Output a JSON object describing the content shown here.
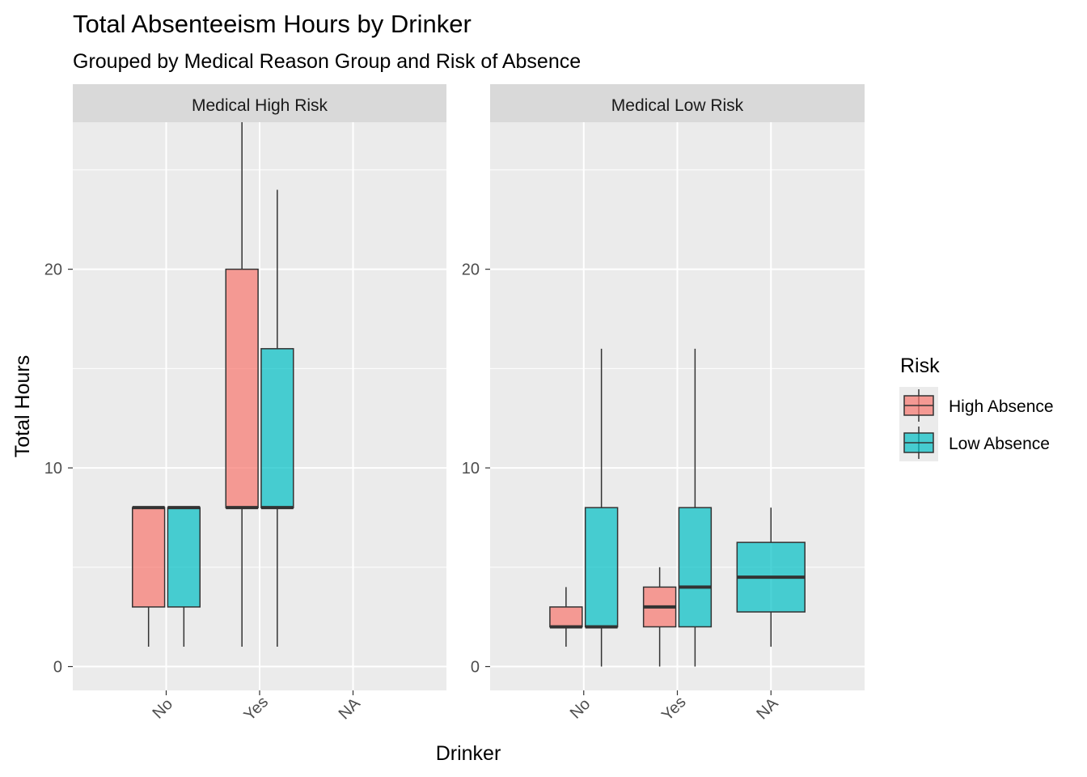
{
  "chart_data": {
    "type": "boxplot",
    "title": "Total Absenteeism Hours by Drinker",
    "subtitle": "Grouped by Medical Reason Group and Risk of Absence",
    "xlabel": "Drinker",
    "ylabel": "Total Hours",
    "categories": [
      "No",
      "Yes",
      "NA"
    ],
    "yticks": [
      0,
      10,
      20
    ],
    "ylim": [
      -1.2,
      27.4
    ],
    "grid": true,
    "legend": {
      "title": "Risk",
      "position": "right",
      "entries": [
        {
          "name": "High Absence",
          "color": "#F8766D"
        },
        {
          "name": "Low Absence",
          "color": "#00BFC4"
        }
      ]
    },
    "facets": [
      {
        "label": "Medical High Risk",
        "boxes": [
          {
            "x": "No",
            "group": "High Absence",
            "whisker_low": 1,
            "q1": 3,
            "median": 8,
            "q3": 8,
            "whisker_high": 8
          },
          {
            "x": "No",
            "group": "Low Absence",
            "whisker_low": 1,
            "q1": 3,
            "median": 8,
            "q3": 8,
            "whisker_high": 8
          },
          {
            "x": "Yes",
            "group": "High Absence",
            "whisker_low": 1,
            "q1": 8,
            "median": 8,
            "q3": 20,
            "whisker_high": 28
          },
          {
            "x": "Yes",
            "group": "Low Absence",
            "whisker_low": 1,
            "q1": 8,
            "median": 8,
            "q3": 16,
            "whisker_high": 24
          }
        ]
      },
      {
        "label": "Medical Low Risk",
        "boxes": [
          {
            "x": "No",
            "group": "High Absence",
            "whisker_low": 1,
            "q1": 2,
            "median": 2,
            "q3": 3,
            "whisker_high": 4
          },
          {
            "x": "No",
            "group": "Low Absence",
            "whisker_low": 0,
            "q1": 2,
            "median": 2,
            "q3": 8,
            "whisker_high": 16
          },
          {
            "x": "Yes",
            "group": "High Absence",
            "whisker_low": 0,
            "q1": 2,
            "median": 3,
            "q3": 4,
            "whisker_high": 5
          },
          {
            "x": "Yes",
            "group": "Low Absence",
            "whisker_low": 0,
            "q1": 2,
            "median": 4,
            "q3": 8,
            "whisker_high": 16
          },
          {
            "x": "NA",
            "group": "Low Absence",
            "whisker_low": 1,
            "q1": 2.75,
            "median": 4.5,
            "q3": 6.25,
            "whisker_high": 8
          }
        ]
      }
    ]
  }
}
